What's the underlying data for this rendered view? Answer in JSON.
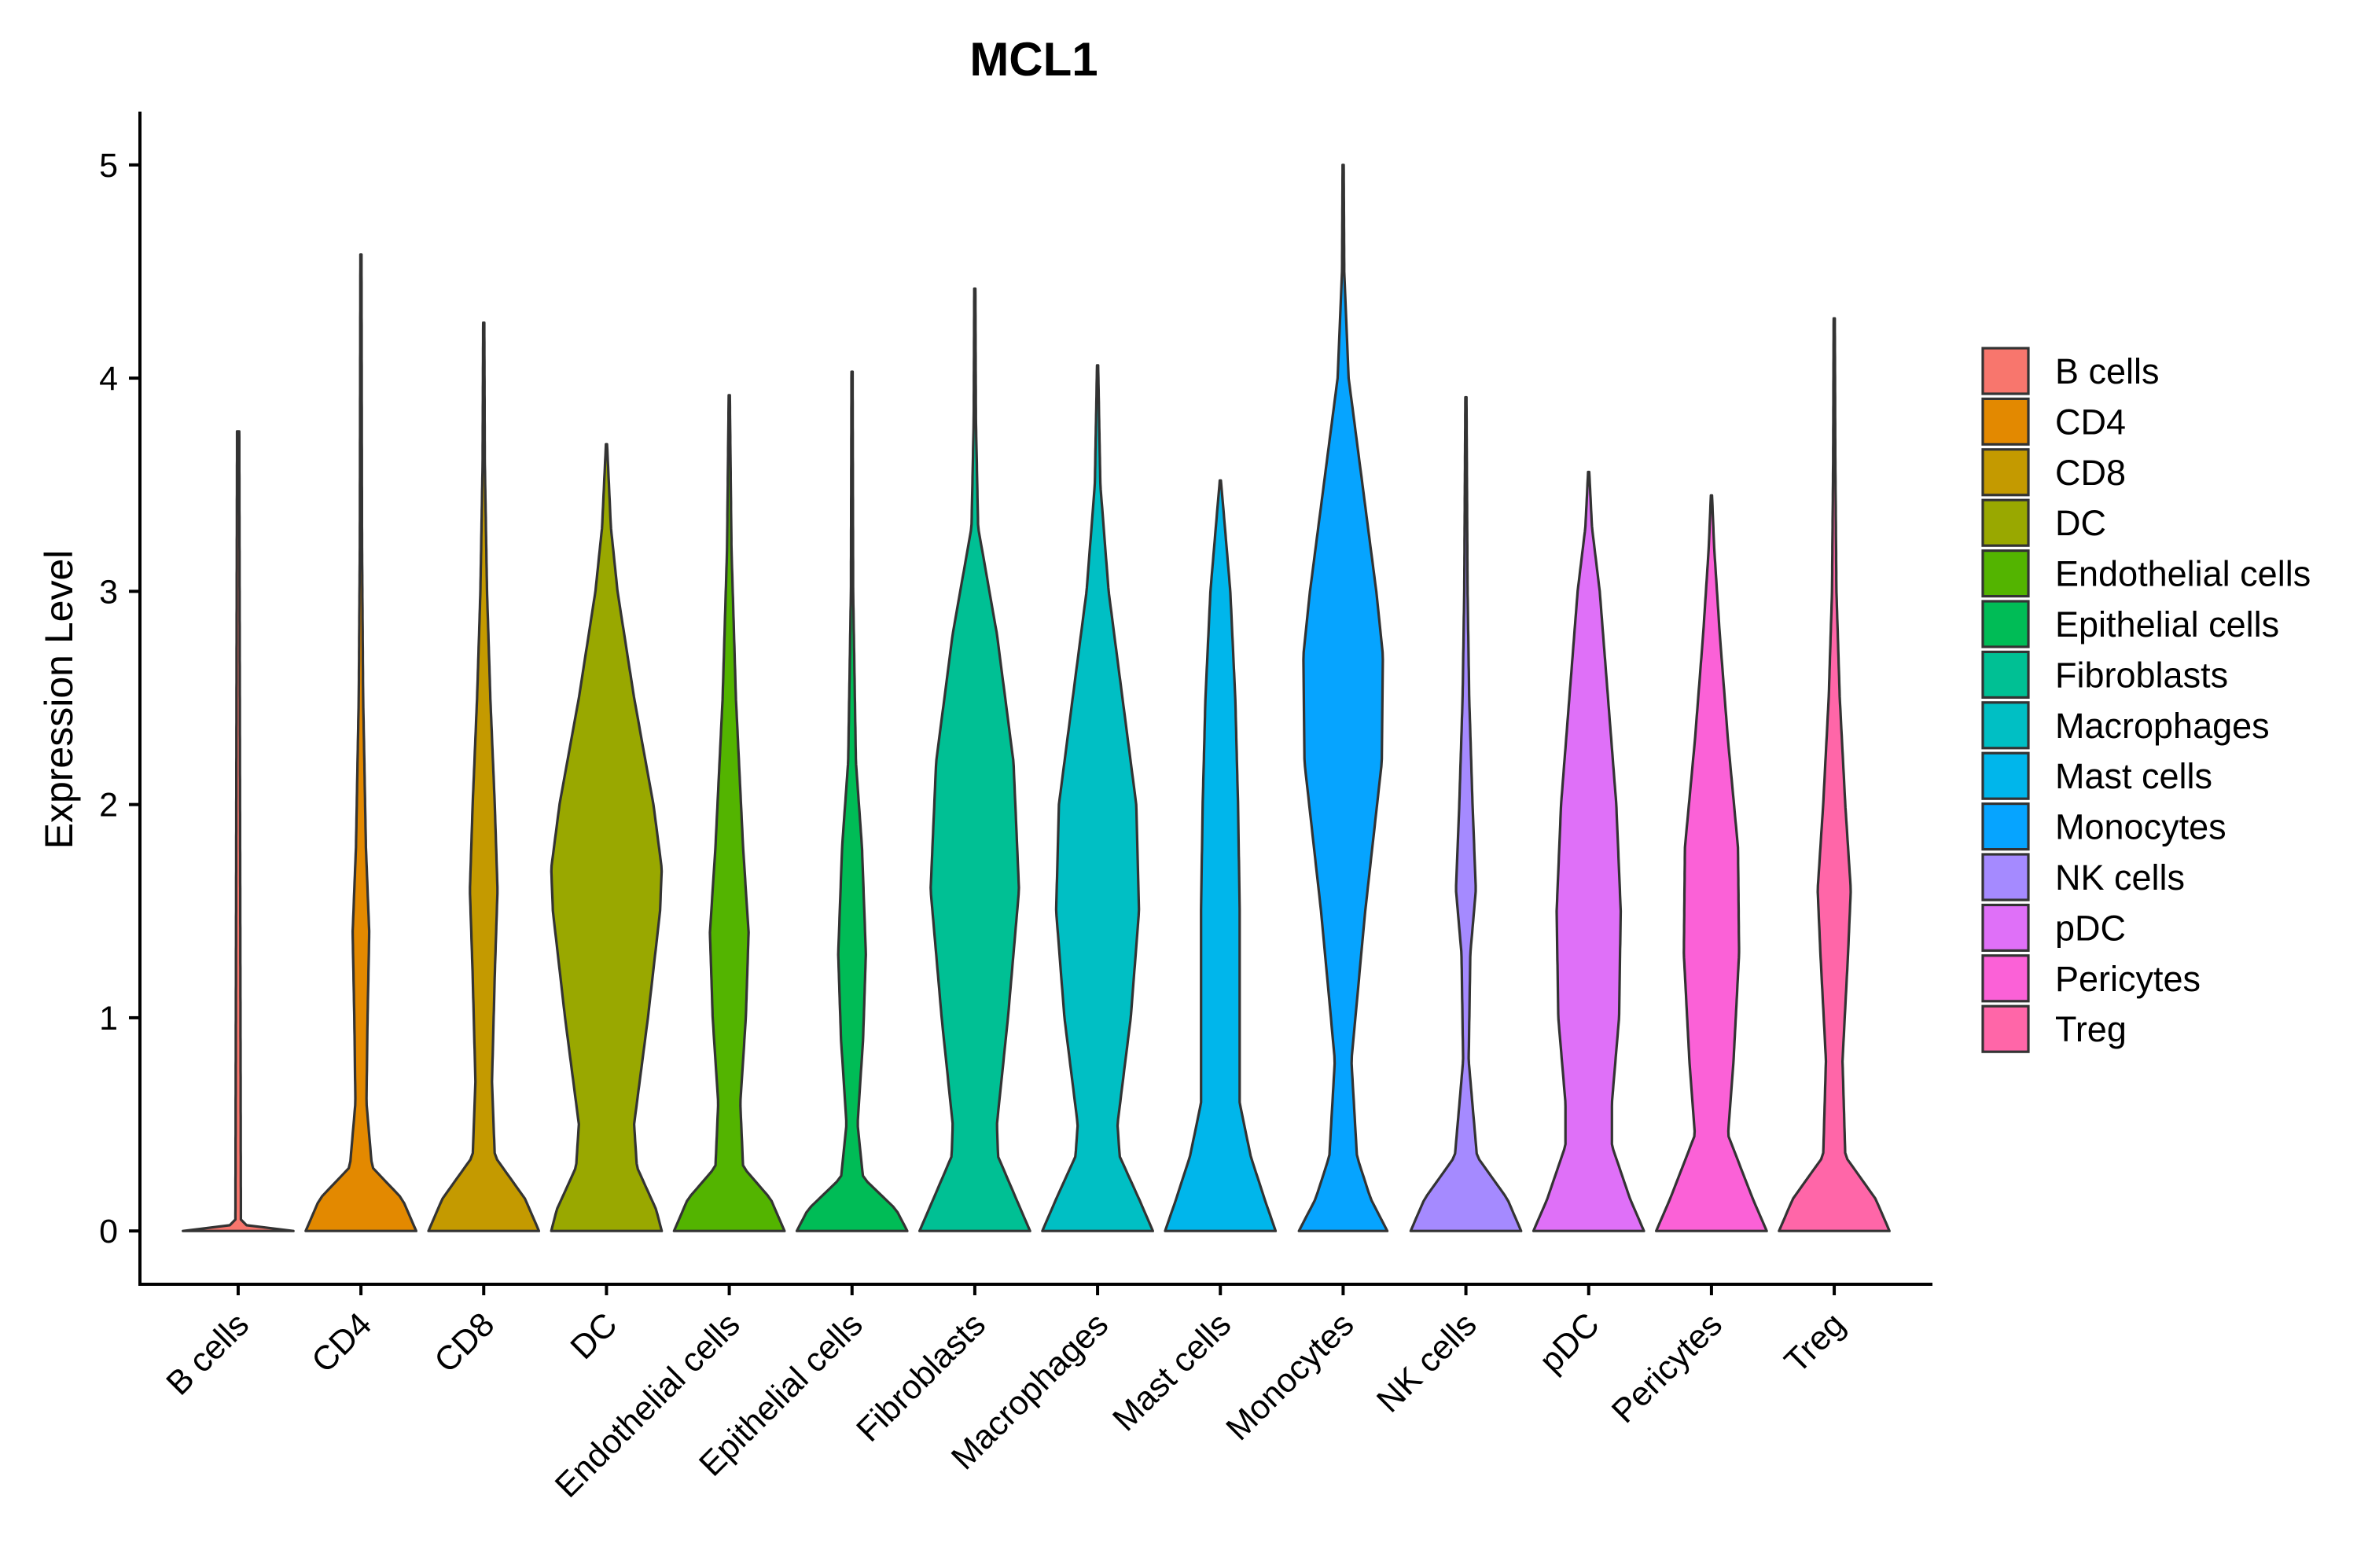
{
  "chart_data": {
    "type": "violin",
    "title": "MCL1",
    "xlabel": "",
    "ylabel": "Expression Level",
    "ylim": [
      -0.25,
      5.25
    ],
    "yticks": [
      "0",
      "1",
      "2",
      "3",
      "4",
      "5"
    ],
    "grid": false,
    "legend_position": "right",
    "categories": [
      "B cells",
      "CD4",
      "CD8",
      "DC",
      "Endothelial cells",
      "Epithelial cells",
      "Fibroblasts",
      "Macrophages",
      "Mast cells",
      "Monocytes",
      "NK cells",
      "pDC",
      "Pericytes",
      "Treg"
    ],
    "colors": [
      "#F8766D",
      "#E38900",
      "#C49A00",
      "#99A800",
      "#53B400",
      "#00BC56",
      "#00C094",
      "#00BFC4",
      "#00B6EB",
      "#06A4FF",
      "#A58AFF",
      "#DF70F8",
      "#FB61D7",
      "#FF66A8"
    ],
    "max_values": [
      3.75,
      4.58,
      4.26,
      3.69,
      3.92,
      4.03,
      4.42,
      4.06,
      3.52,
      5.0,
      3.91,
      3.56,
      3.45,
      4.28
    ],
    "density_profiles": [
      [
        [
          0,
          1.0
        ],
        [
          0.03,
          0.05
        ],
        [
          3.75,
          0.02
        ]
      ],
      [
        [
          0,
          1.0
        ],
        [
          0.15,
          0.75
        ],
        [
          0.3,
          0.2
        ],
        [
          0.6,
          0.1
        ],
        [
          1.0,
          0.12
        ],
        [
          1.4,
          0.15
        ],
        [
          1.8,
          0.09
        ],
        [
          2.5,
          0.04
        ],
        [
          3.2,
          0.02
        ],
        [
          4.58,
          0.01
        ]
      ],
      [
        [
          0,
          1.0
        ],
        [
          0.15,
          0.75
        ],
        [
          0.35,
          0.2
        ],
        [
          0.7,
          0.15
        ],
        [
          1.2,
          0.2
        ],
        [
          1.6,
          0.25
        ],
        [
          2.0,
          0.2
        ],
        [
          2.5,
          0.12
        ],
        [
          3.0,
          0.06
        ],
        [
          3.6,
          0.02
        ],
        [
          4.26,
          0.01
        ]
      ],
      [
        [
          0,
          1.0
        ],
        [
          0.1,
          0.9
        ],
        [
          0.3,
          0.55
        ],
        [
          0.5,
          0.5
        ],
        [
          1.0,
          0.75
        ],
        [
          1.5,
          0.97
        ],
        [
          1.7,
          1.0
        ],
        [
          2.0,
          0.85
        ],
        [
          2.5,
          0.5
        ],
        [
          3.0,
          0.2
        ],
        [
          3.3,
          0.08
        ],
        [
          3.69,
          0.01
        ]
      ],
      [
        [
          0,
          1.0
        ],
        [
          0.15,
          0.75
        ],
        [
          0.3,
          0.25
        ],
        [
          0.6,
          0.2
        ],
        [
          1.0,
          0.3
        ],
        [
          1.4,
          0.35
        ],
        [
          1.8,
          0.25
        ],
        [
          2.5,
          0.12
        ],
        [
          3.2,
          0.04
        ],
        [
          3.92,
          0.01
        ]
      ],
      [
        [
          0,
          1.0
        ],
        [
          0.1,
          0.8
        ],
        [
          0.25,
          0.2
        ],
        [
          0.5,
          0.1
        ],
        [
          0.9,
          0.2
        ],
        [
          1.3,
          0.25
        ],
        [
          1.8,
          0.18
        ],
        [
          2.2,
          0.07
        ],
        [
          3.0,
          0.02
        ],
        [
          4.03,
          0.01
        ]
      ],
      [
        [
          0,
          1.0
        ],
        [
          0.15,
          0.75
        ],
        [
          0.35,
          0.42
        ],
        [
          0.5,
          0.4
        ],
        [
          1.0,
          0.6
        ],
        [
          1.6,
          0.8
        ],
        [
          2.2,
          0.7
        ],
        [
          2.8,
          0.4
        ],
        [
          3.3,
          0.06
        ],
        [
          3.8,
          0.02
        ],
        [
          4.42,
          0.01
        ]
      ],
      [
        [
          0,
          1.0
        ],
        [
          0.15,
          0.75
        ],
        [
          0.35,
          0.4
        ],
        [
          0.5,
          0.36
        ],
        [
          1.0,
          0.6
        ],
        [
          1.5,
          0.75
        ],
        [
          2.0,
          0.7
        ],
        [
          2.5,
          0.45
        ],
        [
          3.0,
          0.2
        ],
        [
          3.5,
          0.05
        ],
        [
          4.06,
          0.01
        ]
      ],
      [
        [
          0,
          1.0
        ],
        [
          0.15,
          0.8
        ],
        [
          0.35,
          0.55
        ],
        [
          0.6,
          0.35
        ],
        [
          1.0,
          0.35
        ],
        [
          1.5,
          0.35
        ],
        [
          2.0,
          0.32
        ],
        [
          2.5,
          0.27
        ],
        [
          3.0,
          0.18
        ],
        [
          3.4,
          0.05
        ],
        [
          3.52,
          0.01
        ]
      ],
      [
        [
          0,
          0.8
        ],
        [
          0.15,
          0.5
        ],
        [
          0.35,
          0.25
        ],
        [
          0.8,
          0.15
        ],
        [
          1.5,
          0.4
        ],
        [
          2.2,
          0.7
        ],
        [
          2.7,
          0.72
        ],
        [
          3.0,
          0.6
        ],
        [
          3.5,
          0.35
        ],
        [
          4.0,
          0.1
        ],
        [
          4.5,
          0.02
        ],
        [
          5.0,
          0.01
        ]
      ],
      [
        [
          0,
          1.0
        ],
        [
          0.15,
          0.75
        ],
        [
          0.35,
          0.2
        ],
        [
          0.8,
          0.05
        ],
        [
          1.3,
          0.08
        ],
        [
          1.6,
          0.18
        ],
        [
          2.0,
          0.12
        ],
        [
          2.5,
          0.06
        ],
        [
          3.0,
          0.03
        ],
        [
          3.91,
          0.01
        ]
      ],
      [
        [
          0,
          1.0
        ],
        [
          0.15,
          0.75
        ],
        [
          0.4,
          0.42
        ],
        [
          0.6,
          0.42
        ],
        [
          1.0,
          0.55
        ],
        [
          1.5,
          0.58
        ],
        [
          2.0,
          0.5
        ],
        [
          2.5,
          0.35
        ],
        [
          3.0,
          0.2
        ],
        [
          3.3,
          0.06
        ],
        [
          3.56,
          0.01
        ]
      ],
      [
        [
          0,
          1.0
        ],
        [
          0.15,
          0.75
        ],
        [
          0.45,
          0.3
        ],
        [
          0.8,
          0.4
        ],
        [
          1.3,
          0.5
        ],
        [
          1.8,
          0.48
        ],
        [
          2.3,
          0.3
        ],
        [
          2.8,
          0.15
        ],
        [
          3.2,
          0.05
        ],
        [
          3.45,
          0.01
        ]
      ],
      [
        [
          0,
          1.0
        ],
        [
          0.15,
          0.75
        ],
        [
          0.35,
          0.2
        ],
        [
          0.8,
          0.15
        ],
        [
          1.3,
          0.25
        ],
        [
          1.6,
          0.3
        ],
        [
          2.0,
          0.2
        ],
        [
          2.5,
          0.1
        ],
        [
          3.0,
          0.04
        ],
        [
          3.6,
          0.02
        ],
        [
          4.28,
          0.01
        ]
      ]
    ],
    "legend": {
      "title": "",
      "entries": [
        "B cells",
        "CD4",
        "CD8",
        "DC",
        "Endothelial cells",
        "Epithelial cells",
        "Fibroblasts",
        "Macrophages",
        "Mast cells",
        "Monocytes",
        "NK cells",
        "pDC",
        "Pericytes",
        "Treg"
      ]
    }
  }
}
